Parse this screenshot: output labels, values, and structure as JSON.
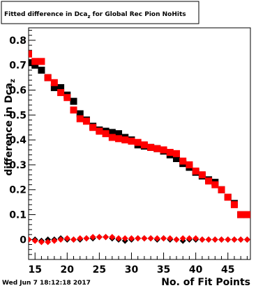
{
  "chart_data": {
    "type": "scatter",
    "title": "Fitted difference in Dca",
    "title_subscript": "z",
    "title_suffix": " for Global Rec Pion NoHits",
    "xlabel": "No. of Fit Points",
    "ylabel": "difference in Dca",
    "ylabel_subscript": "z",
    "xlim": [
      14,
      48.5
    ],
    "ylim": [
      -0.08,
      0.85
    ],
    "x_ticks": [
      15,
      20,
      25,
      30,
      35,
      40,
      45
    ],
    "y_ticks": [
      0,
      0.1,
      0.2,
      0.3,
      0.4,
      0.5,
      0.6,
      0.7,
      0.8
    ],
    "x_tick_labels": [
      "15",
      "20",
      "25",
      "30",
      "35",
      "40",
      "45"
    ],
    "y_tick_labels": [
      "0",
      "0.1",
      "0.2",
      "0.3",
      "0.4",
      "0.5",
      "0.6",
      "0.7",
      "0.8"
    ],
    "grid": false,
    "legend": "none",
    "date": "Wed Jun  7 18:12:18 2017",
    "series": [
      {
        "color": "#000000",
        "marker": "square",
        "x": [
          14,
          15,
          16,
          17,
          18,
          19,
          20,
          21,
          22,
          23,
          24,
          25,
          26,
          27,
          28,
          29,
          30,
          31,
          32,
          33,
          34,
          35,
          36,
          37,
          38,
          39,
          40,
          41,
          42,
          43,
          44,
          45,
          46,
          47,
          48
        ],
        "y": [
          0.71,
          0.7,
          0.68,
          0.65,
          0.61,
          0.61,
          0.58,
          0.555,
          0.505,
          0.48,
          0.455,
          0.44,
          0.435,
          0.43,
          0.425,
          0.41,
          0.4,
          0.38,
          0.375,
          0.37,
          0.365,
          0.355,
          0.34,
          0.325,
          0.305,
          0.29,
          0.27,
          0.255,
          0.24,
          0.23,
          0.2,
          0.17,
          0.145,
          0.1,
          0.1
        ]
      },
      {
        "color": "#ff0000",
        "marker": "square",
        "x": [
          14,
          15,
          16,
          17,
          18,
          19,
          20,
          21,
          22,
          23,
          24,
          25,
          26,
          27,
          28,
          29,
          30,
          31,
          32,
          33,
          34,
          35,
          36,
          37,
          38,
          39,
          40,
          41,
          42,
          43,
          44,
          45,
          46,
          47,
          48
        ],
        "y": [
          0.745,
          0.715,
          0.715,
          0.65,
          0.63,
          0.59,
          0.57,
          0.52,
          0.485,
          0.475,
          0.45,
          0.435,
          0.425,
          0.41,
          0.405,
          0.4,
          0.395,
          0.39,
          0.38,
          0.37,
          0.365,
          0.36,
          0.35,
          0.345,
          0.315,
          0.3,
          0.275,
          0.26,
          0.235,
          0.22,
          0.2,
          0.17,
          0.14,
          0.1,
          0.1
        ]
      },
      {
        "color": "#000000",
        "marker": "diamond",
        "x": [
          14,
          15,
          16,
          17,
          18,
          19,
          20,
          21,
          22,
          23,
          24,
          25,
          26,
          27,
          28,
          29,
          30,
          31,
          32,
          33,
          34,
          35,
          36,
          37,
          38,
          39,
          40,
          41,
          42,
          43,
          44,
          45,
          46,
          47,
          48
        ],
        "y": [
          0.0,
          0.0,
          -0.005,
          0.0,
          0.0,
          0.005,
          0.0,
          0.0,
          0.0,
          0.005,
          0.005,
          0.01,
          0.01,
          0.005,
          0.0,
          -0.005,
          0.0,
          0.005,
          0.005,
          0.005,
          0.0,
          0.005,
          0.0,
          0.0,
          -0.005,
          0.0,
          0.0,
          0.0,
          0.0,
          0.0,
          0.0,
          0.0,
          0.0,
          0.0,
          0.0
        ]
      },
      {
        "color": "#ff0000",
        "marker": "diamond",
        "x": [
          14,
          15,
          16,
          17,
          18,
          19,
          20,
          21,
          22,
          23,
          24,
          25,
          26,
          27,
          28,
          29,
          30,
          31,
          32,
          33,
          34,
          35,
          36,
          37,
          38,
          39,
          40,
          41,
          42,
          43,
          44,
          45,
          46,
          47,
          48
        ],
        "y": [
          0.0,
          -0.005,
          -0.01,
          -0.01,
          -0.005,
          0.0,
          0.005,
          0.0,
          0.005,
          0.005,
          0.01,
          0.01,
          0.01,
          0.01,
          0.005,
          0.005,
          0.005,
          0.005,
          0.005,
          0.005,
          0.005,
          0.005,
          0.005,
          0.0,
          0.005,
          0.005,
          0.005,
          0.0,
          0.0,
          0.0,
          0.0,
          0.0,
          0.0,
          0.0,
          0.0
        ]
      }
    ]
  }
}
